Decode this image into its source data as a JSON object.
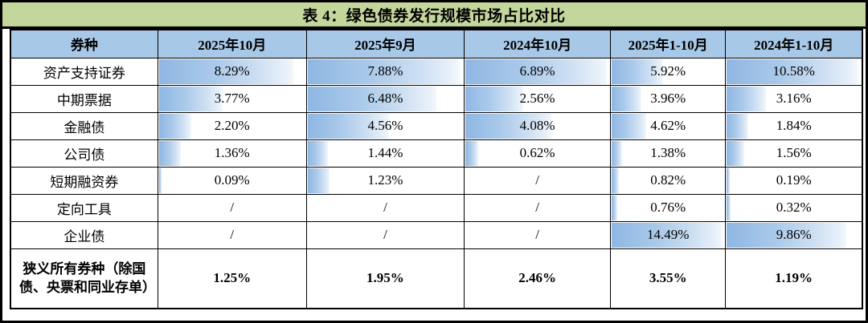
{
  "title": "表 4：绿色债券发行规模市场占比对比",
  "colors": {
    "title_bar_green": "#c3d69b",
    "header_blue": "#a8c8e8",
    "bar_blue_start": "#8fb7e3",
    "bar_blue_end": "#f4f8fd",
    "border_black": "#000000"
  },
  "table": {
    "columns": [
      "券种",
      "2025年10月",
      "2025年9月",
      "2024年10月",
      "2025年1-10月",
      "2024年1-10月"
    ],
    "rows": [
      {
        "label": "资产支持证券",
        "values": [
          "8.29%",
          "7.88%",
          "6.89%",
          "5.92%",
          "10.58%"
        ],
        "bars": [
          91,
          97,
          97,
          45,
          97
        ]
      },
      {
        "label": "中期票据",
        "values": [
          "3.77%",
          "6.48%",
          "2.56%",
          "3.96%",
          "3.16%"
        ],
        "bars": [
          43,
          82,
          40,
          26,
          29
        ]
      },
      {
        "label": "金融债",
        "values": [
          "2.20%",
          "4.56%",
          "4.08%",
          "4.62%",
          "1.84%"
        ],
        "bars": [
          22,
          52,
          59,
          30,
          16
        ]
      },
      {
        "label": "公司债",
        "values": [
          "1.36%",
          "1.44%",
          "0.62%",
          "1.38%",
          "1.56%"
        ],
        "bars": [
          15,
          13,
          9,
          9,
          13
        ]
      },
      {
        "label": "短期融资券",
        "values": [
          "0.09%",
          "1.23%",
          "/",
          "0.82%",
          "0.19%"
        ],
        "bars": [
          2,
          14,
          null,
          6,
          2
        ]
      },
      {
        "label": "定向工具",
        "values": [
          "/",
          "/",
          "/",
          "0.76%",
          "0.32%"
        ],
        "bars": [
          null,
          null,
          null,
          5,
          3
        ]
      },
      {
        "label": "企业债",
        "values": [
          "/",
          "/",
          "/",
          "14.49%",
          "9.86%"
        ],
        "bars": [
          null,
          null,
          null,
          97,
          88
        ]
      }
    ],
    "total_row": {
      "label": "狭义所有券种（除国债、央票和同业存单）",
      "values": [
        "1.25%",
        "1.95%",
        "2.46%",
        "3.55%",
        "1.19%"
      ]
    }
  }
}
